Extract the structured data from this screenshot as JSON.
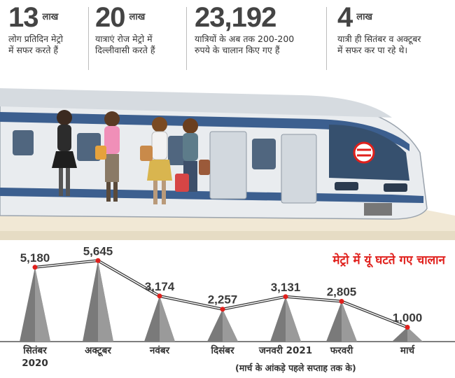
{
  "stats": [
    {
      "value": "13",
      "unit": "लाख",
      "line1": "लोग प्रतिदिन मेट्रो",
      "line2": "में सफर करते हैं"
    },
    {
      "value": "20",
      "unit": "लाख",
      "line1": "यात्राएं रोज मेट्रो में",
      "line2": "दिल्लीवासी करते हैं"
    },
    {
      "value": "23,192",
      "unit": "",
      "line1": "यात्रियों के अब तक 200-200",
      "line2": "रुपये के चालान किए गए हैं"
    },
    {
      "value": "4",
      "unit": "लाख",
      "line1": "यात्री ही सितंबर व अक्टूबर",
      "line2": "में सफर कर पा रहे थे।"
    }
  ],
  "colors": {
    "accent": "#e0201c",
    "cone": "#7a7a7a",
    "train_blue": "#3c5f8f",
    "train_body": "#e9ecef"
  },
  "chart_data": {
    "type": "line",
    "title": "मेट्रो में यूं घटते गए चालान",
    "categories": [
      "सितंबर 2020",
      "अक्टूबर",
      "नवंबर",
      "दिसंबर",
      "जनवरी 2021",
      "फरवरी",
      "मार्च"
    ],
    "values": [
      5180,
      5645,
      3174,
      2257,
      3131,
      2805,
      1000
    ],
    "value_labels": [
      "5,180",
      "5,645",
      "3,174",
      "2,257",
      "3,131",
      "2,805",
      "1,000"
    ],
    "footnote": "(मार्च के आंकड़े पहले सप्ताह तक के)"
  }
}
